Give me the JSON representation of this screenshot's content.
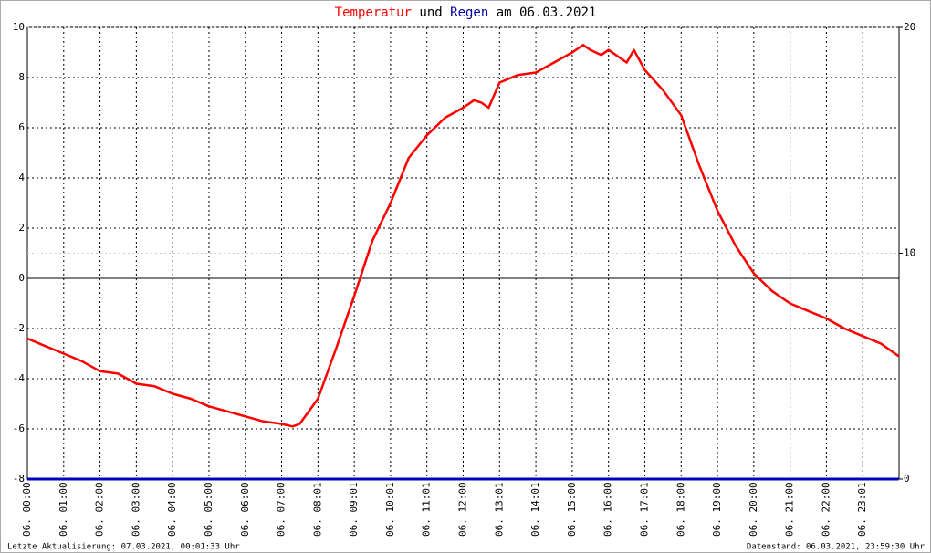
{
  "chart_data": {
    "type": "line",
    "title": [
      {
        "text": "Temperatur",
        "color": "#ff0000"
      },
      {
        "text": "und",
        "color": "#000000"
      },
      {
        "text": "Regen",
        "color": "#0000a0"
      },
      {
        "text": "am 06.03.2021",
        "color": "#000000"
      }
    ],
    "x": [
      0,
      0.5,
      1,
      1.5,
      2,
      2.5,
      3,
      3.5,
      4,
      4.5,
      5,
      5.5,
      6,
      6.5,
      7,
      7.3,
      7.5,
      8,
      8.5,
      9,
      9.5,
      10,
      10.5,
      11,
      11.5,
      12,
      12.3,
      12.5,
      12.7,
      13,
      13.5,
      14,
      14.5,
      15,
      15.3,
      15.5,
      15.8,
      16,
      16.5,
      16.7,
      17,
      17.5,
      18,
      18.5,
      19,
      19.5,
      20,
      20.5,
      21,
      21.5,
      22,
      22.5,
      23,
      23.5,
      23.99
    ],
    "series": [
      {
        "name": "Temperatur",
        "color": "#ff0000",
        "values": [
          -2.4,
          -2.7,
          -3.0,
          -3.3,
          -3.7,
          -3.8,
          -4.2,
          -4.3,
          -4.6,
          -4.8,
          -5.1,
          -5.3,
          -5.5,
          -5.7,
          -5.8,
          -5.9,
          -5.8,
          -4.8,
          -2.8,
          -0.7,
          1.5,
          3.0,
          4.8,
          5.7,
          6.4,
          6.8,
          7.1,
          7.0,
          6.8,
          7.8,
          8.1,
          8.2,
          8.6,
          9.0,
          9.3,
          9.1,
          8.9,
          9.1,
          8.6,
          9.1,
          8.3,
          7.5,
          6.5,
          4.5,
          2.7,
          1.3,
          0.2,
          -0.5,
          -1.0,
          -1.3,
          -1.6,
          -2.0,
          -2.3,
          -2.6,
          -3.1
        ]
      },
      {
        "name": "Regen",
        "color": "#0000c0",
        "axis": "y2",
        "values": [
          0,
          0,
          0,
          0,
          0,
          0,
          0,
          0,
          0,
          0,
          0,
          0,
          0,
          0,
          0,
          0,
          0,
          0,
          0,
          0,
          0,
          0,
          0,
          0,
          0,
          0,
          0,
          0,
          0,
          0,
          0,
          0,
          0,
          0,
          0,
          0,
          0,
          0,
          0,
          0,
          0,
          0,
          0,
          0,
          0,
          0,
          0,
          0,
          0,
          0,
          0,
          0,
          0,
          0,
          0
        ]
      }
    ],
    "xlim": [
      0,
      24
    ],
    "xticks": [
      {
        "value": 0,
        "label": "06. 00:00"
      },
      {
        "value": 1,
        "label": "06. 01:00"
      },
      {
        "value": 2,
        "label": "06. 02:00"
      },
      {
        "value": 3,
        "label": "06. 03:00"
      },
      {
        "value": 4,
        "label": "06. 04:00"
      },
      {
        "value": 5,
        "label": "06. 05:00"
      },
      {
        "value": 6,
        "label": "06. 06:00"
      },
      {
        "value": 7,
        "label": "06. 07:00"
      },
      {
        "value": 8,
        "label": "06. 08:01"
      },
      {
        "value": 9,
        "label": "06. 09:01"
      },
      {
        "value": 10,
        "label": "06. 10:01"
      },
      {
        "value": 11,
        "label": "06. 11:01"
      },
      {
        "value": 12,
        "label": "06. 12:00"
      },
      {
        "value": 13,
        "label": "06. 13:01"
      },
      {
        "value": 14,
        "label": "06. 14:01"
      },
      {
        "value": 15,
        "label": "06. 15:00"
      },
      {
        "value": 16,
        "label": "06. 16:00"
      },
      {
        "value": 17,
        "label": "06. 17:01"
      },
      {
        "value": 18,
        "label": "06. 18:00"
      },
      {
        "value": 19,
        "label": "06. 19:00"
      },
      {
        "value": 20,
        "label": "06. 20:00"
      },
      {
        "value": 21,
        "label": "06. 21:00"
      },
      {
        "value": 22,
        "label": "06. 22:00"
      },
      {
        "value": 23,
        "label": "06. 23:01"
      }
    ],
    "ylim": [
      -8,
      10
    ],
    "yticks": [
      -8,
      -6,
      -4,
      -2,
      0,
      2,
      4,
      6,
      8,
      10
    ],
    "y2lim": [
      0,
      20
    ],
    "y2ticks": [
      0,
      10,
      20
    ],
    "grid": true,
    "footer_left": "Letzte Aktualisierung: 07.03.2021, 00:01:33 Uhr",
    "footer_right": "Datenstand: 06.03.2021, 23:59:30 Uhr"
  }
}
